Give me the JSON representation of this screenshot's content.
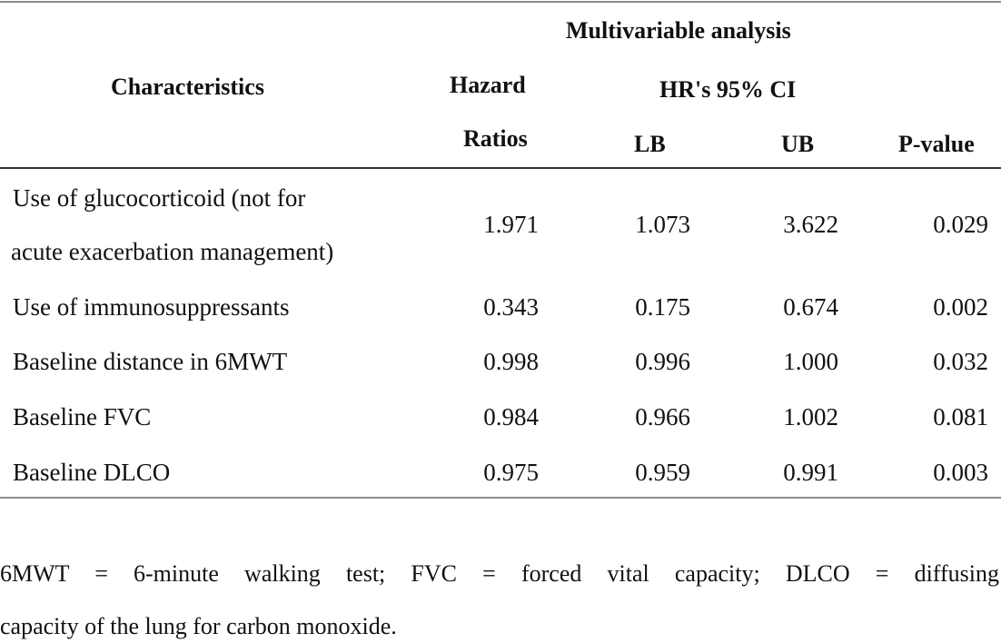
{
  "table": {
    "header": {
      "characteristics": "Characteristics",
      "group": "Multivariable analysis",
      "hazard_line1": "Hazard",
      "hazard_line2": "Ratios",
      "ci_group": "HR's 95% CI",
      "lb": "LB",
      "ub": "UB",
      "pvalue": "P-value"
    },
    "rows": [
      {
        "label_line1": "Use of glucocorticoid (not for",
        "label_line2": "acute exacerbation management)",
        "hr": "1.971",
        "lb": "1.073",
        "ub": "3.622",
        "p": "0.029"
      },
      {
        "label_line1": "Use of immunosuppressants",
        "hr": "0.343",
        "lb": "0.175",
        "ub": "0.674",
        "p": "0.002"
      },
      {
        "label_line1": "Baseline distance in 6MWT",
        "hr": "0.998",
        "lb": "0.996",
        "ub": "1.000",
        "p": "0.032"
      },
      {
        "label_line1": "Baseline FVC",
        "hr": "0.984",
        "lb": "0.966",
        "ub": "1.002",
        "p": "0.081"
      },
      {
        "label_line1": "Baseline DLCO",
        "hr": "0.975",
        "lb": "0.959",
        "ub": "0.991",
        "p": "0.003"
      }
    ]
  },
  "footnote": {
    "line1": "6MWT = 6-minute walking test; FVC = forced vital capacity; DLCO = diffusing",
    "line2": "capacity of the lung for carbon monoxide."
  }
}
